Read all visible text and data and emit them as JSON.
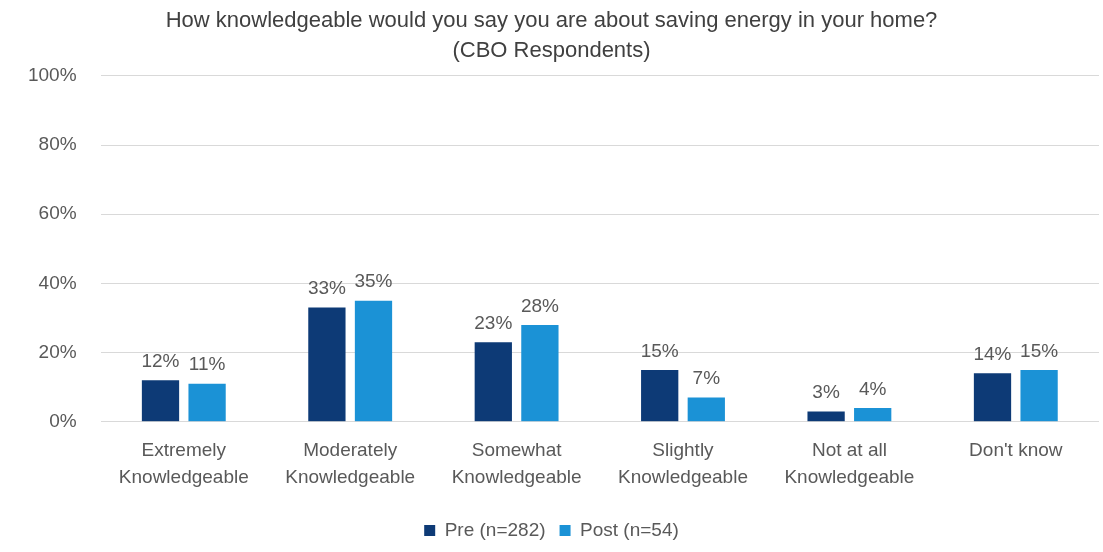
{
  "chart_data": {
    "type": "bar",
    "title": "How knowledgeable would you say you are about saving energy in your home?",
    "subtitle": "(CBO Respondents)",
    "categories": [
      "Extremely Knowledgeable",
      "Moderately Knowledgeable",
      "Somewhat Knowledgeable",
      "Slightly Knowledgeable",
      "Not at all Knowledgeable",
      "Don't know"
    ],
    "series": [
      {
        "name": "Pre (n=282)",
        "color": "#0d3a76",
        "values": [
          12,
          33,
          23,
          15,
          3,
          14
        ],
        "value_labels": [
          "12%",
          "33%",
          "23%",
          "15%",
          "3%",
          "14%"
        ]
      },
      {
        "name": "Post (n=54)",
        "color": "#1b92d6",
        "values": [
          11,
          35,
          28,
          7,
          4,
          15
        ],
        "value_labels": [
          "11%",
          "35%",
          "28%",
          "7%",
          "4%",
          "15%"
        ]
      }
    ],
    "ylim": [
      0,
      100
    ],
    "yticks": [
      {
        "value": 0,
        "label": "0%"
      },
      {
        "value": 20,
        "label": "20%"
      },
      {
        "value": 40,
        "label": "40%"
      },
      {
        "value": 60,
        "label": "60%"
      },
      {
        "value": 80,
        "label": "80%"
      },
      {
        "value": 100,
        "label": "100%"
      }
    ],
    "grid": "y",
    "legend": "bottom"
  }
}
